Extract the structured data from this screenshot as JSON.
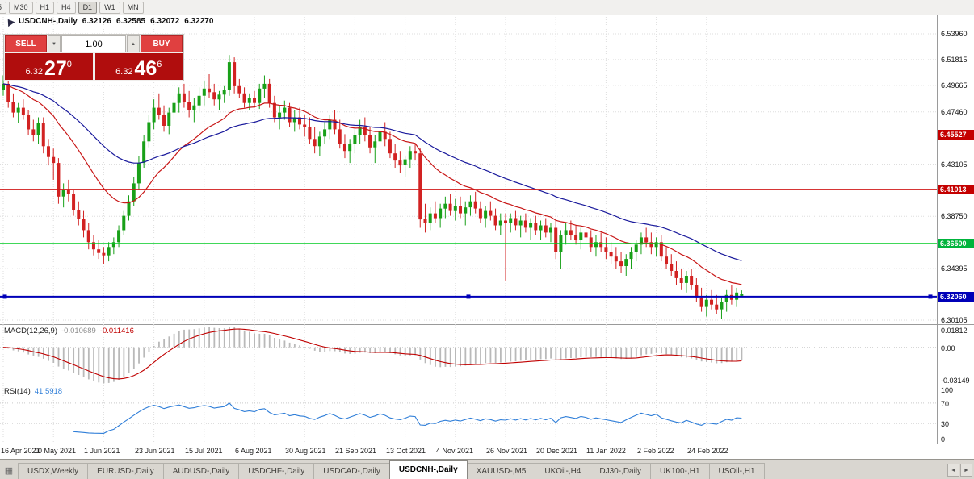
{
  "toolbar": {
    "timeframes": [
      "5",
      "M30",
      "H1",
      "H4",
      "D1",
      "W1",
      "MN"
    ],
    "active": "D1"
  },
  "chart_header": {
    "symbol_period": "USDCNH-,Daily",
    "open": "6.32126",
    "high": "6.32585",
    "low": "6.32072",
    "close": "6.32270"
  },
  "trade_panel": {
    "sell_label": "SELL",
    "buy_label": "BUY",
    "volume": "1.00",
    "sell_price": {
      "small": "6.32",
      "big": "27",
      "sup": "0"
    },
    "buy_price": {
      "small": "6.32",
      "big": "46",
      "sup": "6"
    }
  },
  "icons": {
    "chevron_down": "▼",
    "chevron_up": "▲",
    "tab_scroll_left": "◄",
    "tab_scroll_right": "►",
    "chart_list": "▦"
  },
  "price_axis": {
    "ticks": [
      {
        "label": "6.53960",
        "price": 6.5396
      },
      {
        "label": "6.51815",
        "price": 6.51815
      },
      {
        "label": "6.49665",
        "price": 6.49665
      },
      {
        "label": "6.47460",
        "price": 6.4746
      },
      {
        "label": "6.43105",
        "price": 6.43105
      },
      {
        "label": "6.38750",
        "price": 6.3875
      },
      {
        "label": "6.34395",
        "price": 6.34395
      },
      {
        "label": "6.30105",
        "price": 6.30105
      }
    ],
    "badges": [
      {
        "label": "6.45527",
        "price": 6.45527,
        "color": "#c40000"
      },
      {
        "label": "6.41013",
        "price": 6.41013,
        "color": "#c40000"
      },
      {
        "label": "6.36500",
        "price": 6.365,
        "color": "#00b43c"
      },
      {
        "label": "6.32060",
        "price": 6.3206,
        "color": "#0000b8"
      }
    ]
  },
  "hlines": [
    {
      "price": 6.45527,
      "color": "#d01818",
      "width": 1,
      "selected": false
    },
    {
      "price": 6.41013,
      "color": "#d01818",
      "width": 1,
      "selected": false
    },
    {
      "price": 6.365,
      "color": "#00cc22",
      "width": 1,
      "selected": false
    },
    {
      "price": 6.3206,
      "color": "#0000b8",
      "width": 2,
      "selected": true
    }
  ],
  "macd": {
    "name": "MACD(12,26,9)",
    "value1": "-0.010689",
    "value2": "-0.011416",
    "axis_labels": [
      "0.01812",
      "0.00",
      "-0.03149"
    ],
    "scale_max": 0.01812,
    "scale_min": -0.03149,
    "histogram_color": "#b9b9b9",
    "signal_color": "#c00000"
  },
  "rsi": {
    "name": "RSI(14)",
    "value": "41.5918",
    "period": 14,
    "axis_labels": [
      "100",
      "70",
      "30",
      "0"
    ],
    "levels": [
      70,
      30
    ],
    "line_color": "#2f7ed8"
  },
  "tabs": {
    "items": [
      "USDX,Weekly",
      "EURUSD-,Daily",
      "AUDUSD-,Daily",
      "USDCHF-,Daily",
      "USDCAD-,Daily",
      "USDCNH-,Daily",
      "XAUUSD-,M5",
      "UKOil-,H4",
      "DJ30-,Daily",
      "UK100-,H1",
      "USOil-,H1"
    ],
    "active_index": 5
  },
  "chart_data": {
    "type": "candlestick",
    "symbol": "USDCNH-",
    "timeframe": "Daily",
    "title": "USDCNH-,Daily",
    "y_range": {
      "max": 6.5557,
      "min": 6.297
    },
    "label_every": 10,
    "x_labels": [
      "16 Apr 2021",
      "10 May 2021",
      "1 Jun 2021",
      "23 Jun 2021",
      "15 Jul 2021",
      "6 Aug 2021",
      "30 Aug 2021",
      "21 Sep 2021",
      "13 Oct 2021",
      "4 Nov 2021",
      "26 Nov 2021",
      "20 Dec 2021",
      "11 Jan 2022",
      "2 Feb 2022",
      "24 Feb 2022"
    ],
    "moving_averages": [
      {
        "period": 20,
        "color": "#c81616"
      },
      {
        "period": 45,
        "color": "#1a1a9c"
      }
    ],
    "up_color": "#18a018",
    "down_color": "#d22222",
    "candles": [
      [
        6.493,
        6.505,
        6.488,
        6.498
      ],
      [
        6.498,
        6.503,
        6.478,
        6.483
      ],
      [
        6.483,
        6.49,
        6.47,
        6.474
      ],
      [
        6.474,
        6.482,
        6.465,
        6.478
      ],
      [
        6.478,
        6.485,
        6.468,
        6.472
      ],
      [
        6.472,
        6.476,
        6.455,
        6.46
      ],
      [
        6.46,
        6.468,
        6.45,
        6.455
      ],
      [
        6.455,
        6.47,
        6.448,
        6.465
      ],
      [
        6.465,
        6.47,
        6.44,
        6.446
      ],
      [
        6.446,
        6.452,
        6.43,
        6.437
      ],
      [
        6.437,
        6.444,
        6.418,
        6.432
      ],
      [
        6.432,
        6.436,
        6.398,
        6.404
      ],
      [
        6.404,
        6.415,
        6.395,
        6.41
      ],
      [
        6.41,
        6.418,
        6.4,
        6.406
      ],
      [
        6.406,
        6.41,
        6.388,
        6.393
      ],
      [
        6.393,
        6.4,
        6.38,
        6.385
      ],
      [
        6.385,
        6.392,
        6.37,
        6.376
      ],
      [
        6.376,
        6.382,
        6.36,
        6.366
      ],
      [
        6.366,
        6.372,
        6.355,
        6.36
      ],
      [
        6.36,
        6.368,
        6.352,
        6.357
      ],
      [
        6.357,
        6.362,
        6.348,
        6.355
      ],
      [
        6.355,
        6.366,
        6.35,
        6.362
      ],
      [
        6.362,
        6.37,
        6.356,
        6.366
      ],
      [
        6.366,
        6.38,
        6.362,
        6.376
      ],
      [
        6.376,
        6.392,
        6.372,
        6.388
      ],
      [
        6.388,
        6.405,
        6.384,
        6.4
      ],
      [
        6.4,
        6.42,
        6.396,
        6.415
      ],
      [
        6.415,
        6.438,
        6.41,
        6.432
      ],
      [
        6.432,
        6.455,
        6.428,
        6.45
      ],
      [
        6.45,
        6.472,
        6.445,
        6.466
      ],
      [
        6.466,
        6.485,
        6.46,
        6.478
      ],
      [
        6.478,
        6.49,
        6.468,
        6.472
      ],
      [
        6.472,
        6.48,
        6.458,
        6.463
      ],
      [
        6.463,
        6.478,
        6.456,
        6.474
      ],
      [
        6.474,
        6.488,
        6.468,
        6.482
      ],
      [
        6.482,
        6.495,
        6.474,
        6.49
      ],
      [
        6.49,
        6.498,
        6.478,
        6.483
      ],
      [
        6.483,
        6.492,
        6.47,
        6.476
      ],
      [
        6.476,
        6.486,
        6.466,
        6.48
      ],
      [
        6.48,
        6.495,
        6.474,
        6.488
      ],
      [
        6.488,
        6.5,
        6.48,
        6.494
      ],
      [
        6.494,
        6.506,
        6.486,
        6.491
      ],
      [
        6.491,
        6.498,
        6.48,
        6.485
      ],
      [
        6.485,
        6.492,
        6.476,
        6.489
      ],
      [
        6.489,
        6.496,
        6.482,
        6.493
      ],
      [
        6.493,
        6.522,
        6.488,
        6.516
      ],
      [
        6.516,
        6.52,
        6.49,
        6.496
      ],
      [
        6.496,
        6.502,
        6.486,
        6.49
      ],
      [
        6.49,
        6.495,
        6.478,
        6.482
      ],
      [
        6.482,
        6.49,
        6.476,
        6.486
      ],
      [
        6.486,
        6.492,
        6.478,
        6.482
      ],
      [
        6.482,
        6.498,
        6.477,
        6.494
      ],
      [
        6.494,
        6.505,
        6.486,
        6.498
      ],
      [
        6.498,
        6.502,
        6.478,
        6.482
      ],
      [
        6.482,
        6.488,
        6.466,
        6.47
      ],
      [
        6.47,
        6.48,
        6.46,
        6.474
      ],
      [
        6.474,
        6.484,
        6.468,
        6.478
      ],
      [
        6.478,
        6.482,
        6.462,
        6.466
      ],
      [
        6.466,
        6.476,
        6.458,
        6.47
      ],
      [
        6.47,
        6.478,
        6.46,
        6.464
      ],
      [
        6.464,
        6.472,
        6.454,
        6.462
      ],
      [
        6.462,
        6.47,
        6.448,
        6.452
      ],
      [
        6.452,
        6.462,
        6.44,
        6.446
      ],
      [
        6.446,
        6.458,
        6.438,
        6.454
      ],
      [
        6.454,
        6.466,
        6.448,
        6.46
      ],
      [
        6.46,
        6.472,
        6.452,
        6.468
      ],
      [
        6.468,
        6.476,
        6.456,
        6.46
      ],
      [
        6.46,
        6.468,
        6.444,
        6.448
      ],
      [
        6.448,
        6.456,
        6.436,
        6.442
      ],
      [
        6.442,
        6.452,
        6.432,
        6.448
      ],
      [
        6.448,
        6.46,
        6.44,
        6.455
      ],
      [
        6.455,
        6.468,
        6.448,
        6.462
      ],
      [
        6.462,
        6.47,
        6.45,
        6.455
      ],
      [
        6.455,
        6.462,
        6.44,
        6.445
      ],
      [
        6.445,
        6.455,
        6.432,
        6.45
      ],
      [
        6.45,
        6.462,
        6.442,
        6.458
      ],
      [
        6.458,
        6.466,
        6.446,
        6.452
      ],
      [
        6.452,
        6.458,
        6.436,
        6.44
      ],
      [
        6.44,
        6.448,
        6.428,
        6.434
      ],
      [
        6.434,
        6.442,
        6.424,
        6.43
      ],
      [
        6.43,
        6.438,
        6.42,
        6.435
      ],
      [
        6.435,
        6.446,
        6.428,
        6.442
      ],
      [
        6.442,
        6.448,
        6.434,
        6.44
      ],
      [
        6.44,
        6.444,
        6.378,
        6.385
      ],
      [
        6.385,
        6.398,
        6.374,
        6.382
      ],
      [
        6.382,
        6.395,
        6.376,
        6.39
      ],
      [
        6.39,
        6.4,
        6.382,
        6.386
      ],
      [
        6.386,
        6.398,
        6.378,
        6.394
      ],
      [
        6.394,
        6.404,
        6.386,
        6.398
      ],
      [
        6.398,
        6.406,
        6.388,
        6.392
      ],
      [
        6.392,
        6.402,
        6.384,
        6.396
      ],
      [
        6.396,
        6.404,
        6.386,
        6.39
      ],
      [
        6.39,
        6.4,
        6.38,
        6.395
      ],
      [
        6.395,
        6.405,
        6.388,
        6.4
      ],
      [
        6.4,
        6.408,
        6.39,
        6.394
      ],
      [
        6.394,
        6.4,
        6.382,
        6.386
      ],
      [
        6.386,
        6.396,
        6.378,
        6.392
      ],
      [
        6.392,
        6.4,
        6.384,
        6.388
      ],
      [
        6.388,
        6.394,
        6.376,
        6.38
      ],
      [
        6.38,
        6.39,
        6.372,
        6.384
      ],
      [
        6.384,
        6.39,
        6.334,
        6.382
      ],
      [
        6.382,
        6.39,
        6.374,
        6.386
      ],
      [
        6.386,
        6.392,
        6.376,
        6.38
      ],
      [
        6.38,
        6.388,
        6.37,
        6.384
      ],
      [
        6.384,
        6.39,
        6.374,
        6.378
      ],
      [
        6.378,
        6.386,
        6.368,
        6.382
      ],
      [
        6.382,
        6.388,
        6.372,
        6.376
      ],
      [
        6.376,
        6.384,
        6.368,
        6.38
      ],
      [
        6.38,
        6.386,
        6.37,
        6.374
      ],
      [
        6.374,
        6.382,
        6.366,
        6.378
      ],
      [
        6.378,
        6.384,
        6.352,
        6.358
      ],
      [
        6.358,
        6.376,
        6.344,
        6.372
      ],
      [
        6.372,
        6.382,
        6.364,
        6.376
      ],
      [
        6.376,
        6.384,
        6.368,
        6.372
      ],
      [
        6.372,
        6.38,
        6.364,
        6.368
      ],
      [
        6.368,
        6.378,
        6.36,
        6.374
      ],
      [
        6.374,
        6.382,
        6.366,
        6.37
      ],
      [
        6.37,
        6.376,
        6.358,
        6.362
      ],
      [
        6.362,
        6.372,
        6.354,
        6.366
      ],
      [
        6.366,
        6.374,
        6.358,
        6.362
      ],
      [
        6.362,
        6.37,
        6.352,
        6.358
      ],
      [
        6.358,
        6.366,
        6.348,
        6.354
      ],
      [
        6.354,
        6.362,
        6.344,
        6.35
      ],
      [
        6.35,
        6.358,
        6.34,
        6.346
      ],
      [
        6.346,
        6.356,
        6.338,
        6.352
      ],
      [
        6.352,
        6.362,
        6.344,
        6.358
      ],
      [
        6.358,
        6.368,
        6.35,
        6.364
      ],
      [
        6.364,
        6.374,
        6.356,
        6.37
      ],
      [
        6.37,
        6.378,
        6.362,
        6.366
      ],
      [
        6.366,
        6.374,
        6.356,
        6.362
      ],
      [
        6.362,
        6.37,
        6.354,
        6.366
      ],
      [
        6.366,
        6.372,
        6.35,
        6.354
      ],
      [
        6.354,
        6.362,
        6.344,
        6.348
      ],
      [
        6.348,
        6.356,
        6.338,
        6.342
      ],
      [
        6.342,
        6.35,
        6.33,
        6.336
      ],
      [
        6.336,
        6.344,
        6.326,
        6.332
      ],
      [
        6.332,
        6.342,
        6.324,
        6.338
      ],
      [
        6.338,
        6.344,
        6.326,
        6.33
      ],
      [
        6.33,
        6.336,
        6.316,
        6.32
      ],
      [
        6.32,
        6.328,
        6.308,
        6.312
      ],
      [
        6.312,
        6.322,
        6.304,
        6.318
      ],
      [
        6.318,
        6.326,
        6.31,
        6.314
      ],
      [
        6.314,
        6.322,
        6.306,
        6.31
      ],
      [
        6.31,
        6.32,
        6.302,
        6.316
      ],
      [
        6.316,
        6.326,
        6.308,
        6.322
      ],
      [
        6.322,
        6.33,
        6.314,
        6.318
      ],
      [
        6.318,
        6.328,
        6.312,
        6.324
      ],
      [
        6.32126,
        6.32585,
        6.32072,
        6.3227
      ]
    ]
  }
}
